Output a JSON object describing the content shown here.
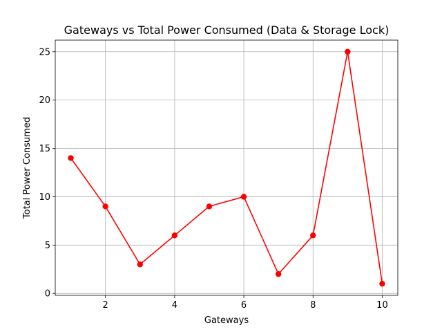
{
  "chart_data": {
    "type": "line",
    "title": "Gateways vs Total Power Consumed (Data & Storage Lock)",
    "xlabel": "Gateways",
    "ylabel": "Total Power Consumed",
    "x": [
      1,
      2,
      3,
      4,
      5,
      6,
      7,
      8,
      9,
      10
    ],
    "series": [
      {
        "values": [
          14,
          9,
          3,
          6,
          9,
          10,
          2,
          6,
          25,
          1
        ],
        "color": "#ff0000",
        "marker": "circle"
      }
    ],
    "xlim": [
      0.55,
      10.45
    ],
    "ylim": [
      -0.2,
      26.2
    ],
    "xticks": [
      2,
      4,
      6,
      8,
      10
    ],
    "yticks": [
      0,
      5,
      10,
      15,
      20,
      25
    ],
    "grid": true
  }
}
